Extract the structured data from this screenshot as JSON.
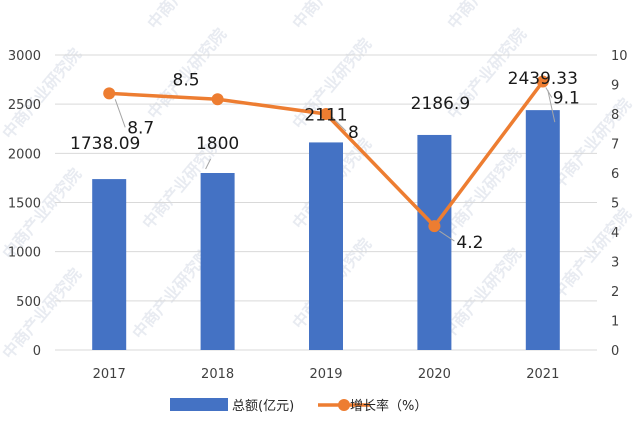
{
  "chart_data": {
    "type": "bar",
    "categories": [
      "2017",
      "2018",
      "2019",
      "2020",
      "2021"
    ],
    "series": [
      {
        "name": "总额(亿元)",
        "type": "bar",
        "axis": "left",
        "color": "#4472C4",
        "values": [
          1738.09,
          1800,
          2111,
          2186.9,
          2439.33
        ],
        "labels": [
          "1738.09",
          "1800",
          "2111",
          "2186.9",
          "2439.33"
        ]
      },
      {
        "name": "增长率（%）",
        "type": "line",
        "axis": "right",
        "color": "#ED7D31",
        "values": [
          8.7,
          8.5,
          8,
          4.2,
          9.1
        ],
        "labels": [
          "8.7",
          "8.5",
          "8",
          "4.2",
          "9.1"
        ]
      }
    ],
    "y_left": {
      "min": 0,
      "max": 3000,
      "ticks": [
        "0",
        "500",
        "1000",
        "1500",
        "2000",
        "2500",
        "3000"
      ]
    },
    "y_right": {
      "min": 0,
      "max": 10,
      "ticks": [
        "0",
        "1",
        "2",
        "3",
        "4",
        "5",
        "6",
        "7",
        "8",
        "9",
        "10"
      ]
    },
    "grid": true,
    "legend_position": "bottom",
    "watermark": "中商产业研究院"
  }
}
